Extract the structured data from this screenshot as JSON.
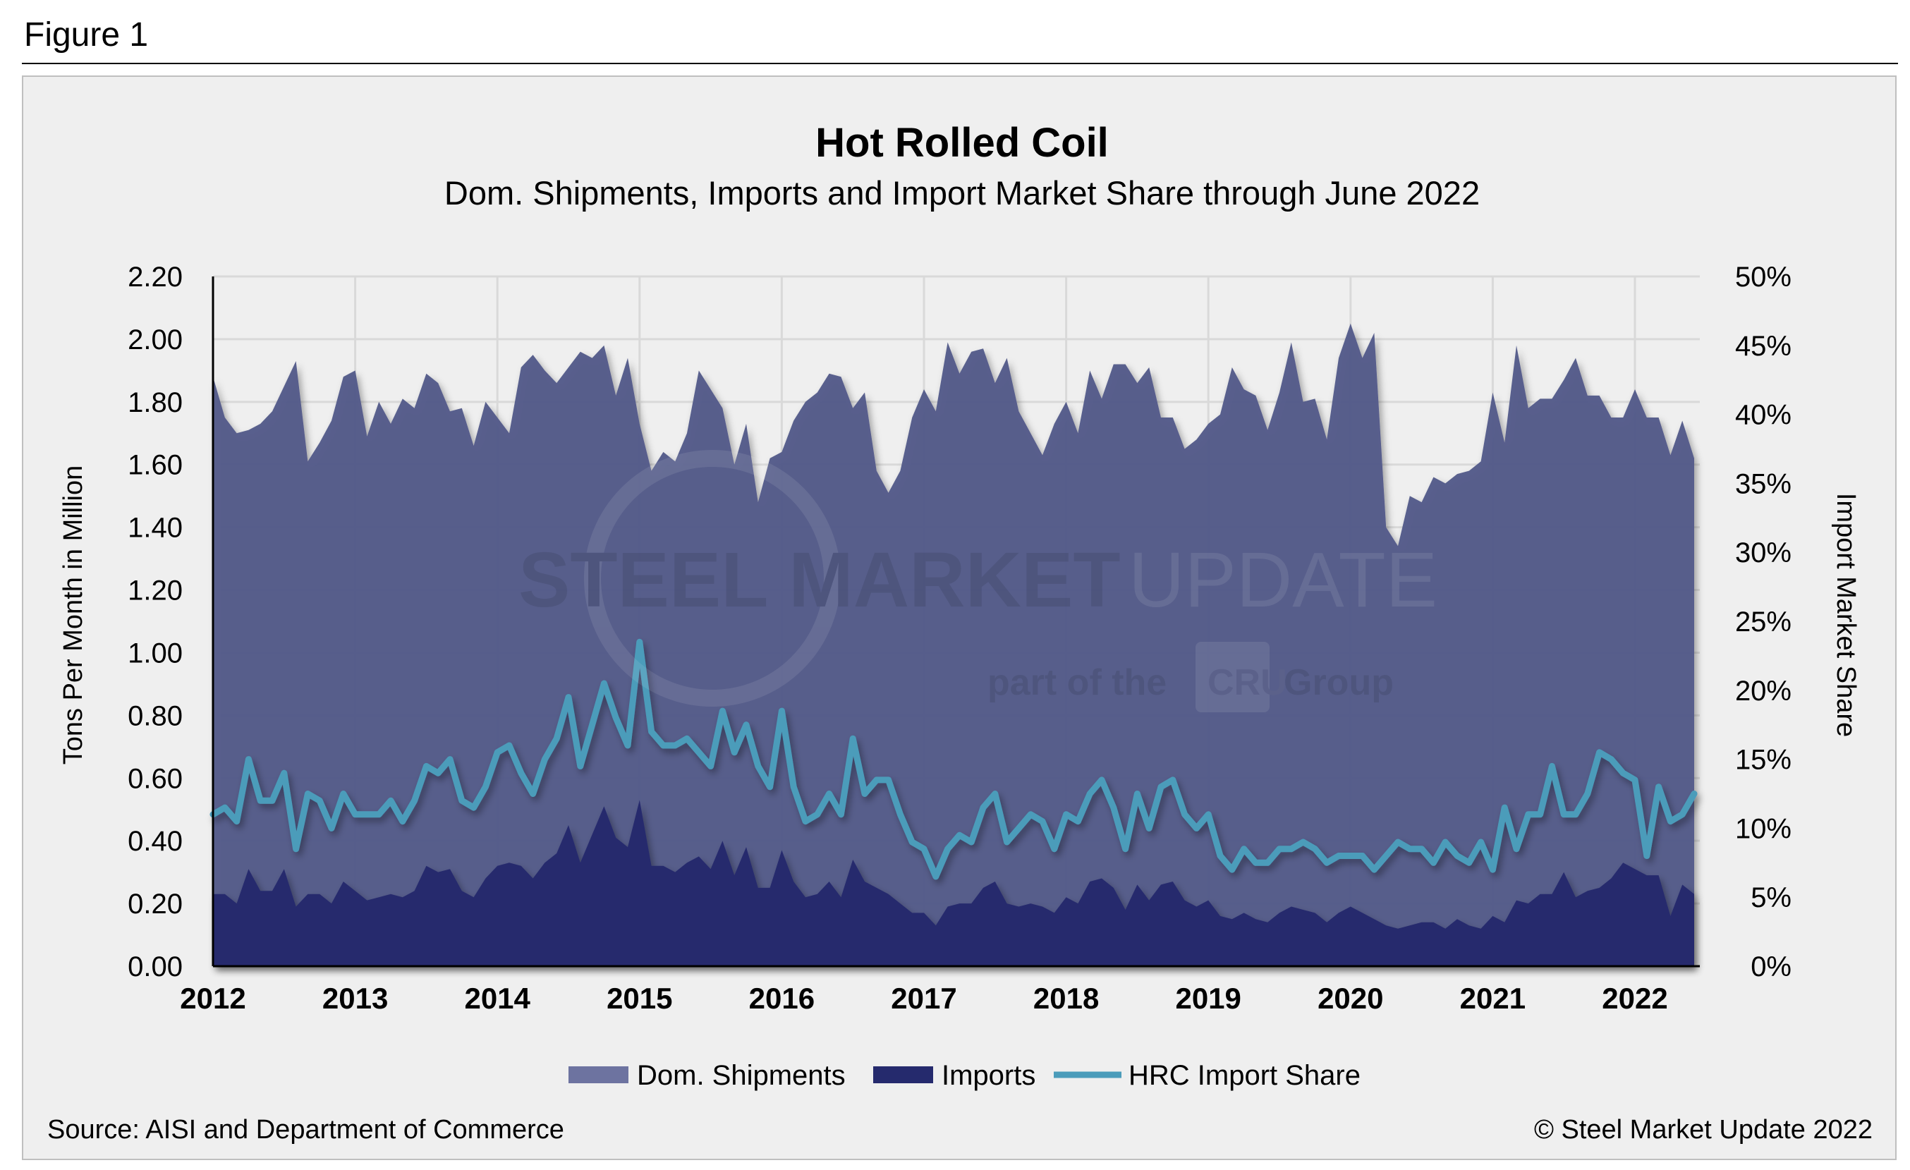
{
  "figure_label": "Figure 1",
  "source": "Source: AISI and Department of Commerce",
  "copyright": "© Steel Market Update 2022",
  "watermark": {
    "line1a": "STEEL MARKET",
    "line1b": "UPDATE",
    "line2a": "part of the",
    "line2b": "CRU",
    "line2c": "Group"
  },
  "colors": {
    "dom_shipments": "#545b8a",
    "imports": "#252a6d",
    "import_share": "#4b9cba",
    "background": "#efefef",
    "grid": "#d9d9d9"
  },
  "chart_data": {
    "type": "area",
    "title": "Hot Rolled Coil",
    "subtitle": "Dom. Shipments, Imports and Import Market Share through June 2022",
    "ylabel": "Tons Per Month in Million",
    "ylabel_right": "Import Market Share",
    "ylim": [
      0,
      2.2
    ],
    "ylim_right": [
      0,
      50
    ],
    "yticks": [
      "0.00",
      "0.20",
      "0.40",
      "0.60",
      "0.80",
      "1.00",
      "1.20",
      "1.40",
      "1.60",
      "1.80",
      "2.00",
      "2.20"
    ],
    "yticks_right": [
      "0%",
      "5%",
      "10%",
      "15%",
      "20%",
      "25%",
      "30%",
      "35%",
      "40%",
      "45%",
      "50%"
    ],
    "xticks": [
      "2012",
      "2013",
      "2014",
      "2015",
      "2016",
      "2017",
      "2018",
      "2019",
      "2020",
      "2021",
      "2022"
    ],
    "x_start": "2012-01",
    "x_end": "2022-06",
    "x_step": "month",
    "grid": true,
    "legend_position": "bottom",
    "series": [
      {
        "name": "Dom. Shipments",
        "kind": "area",
        "axis": "left",
        "values": [
          1.88,
          1.75,
          1.7,
          1.71,
          1.73,
          1.77,
          1.85,
          1.93,
          1.61,
          1.67,
          1.74,
          1.88,
          1.9,
          1.69,
          1.8,
          1.73,
          1.81,
          1.78,
          1.89,
          1.86,
          1.77,
          1.78,
          1.66,
          1.8,
          1.75,
          1.7,
          1.91,
          1.95,
          1.9,
          1.86,
          1.91,
          1.96,
          1.94,
          1.98,
          1.82,
          1.94,
          1.73,
          1.58,
          1.64,
          1.61,
          1.7,
          1.9,
          1.84,
          1.78,
          1.6,
          1.73,
          1.48,
          1.62,
          1.64,
          1.74,
          1.8,
          1.83,
          1.89,
          1.88,
          1.78,
          1.83,
          1.58,
          1.51,
          1.58,
          1.75,
          1.84,
          1.77,
          1.99,
          1.89,
          1.96,
          1.97,
          1.86,
          1.94,
          1.77,
          1.7,
          1.63,
          1.73,
          1.8,
          1.7,
          1.9,
          1.81,
          1.92,
          1.92,
          1.86,
          1.91,
          1.75,
          1.75,
          1.65,
          1.68,
          1.73,
          1.76,
          1.91,
          1.84,
          1.82,
          1.71,
          1.83,
          1.99,
          1.8,
          1.81,
          1.68,
          1.94,
          2.05,
          1.94,
          2.02,
          1.4,
          1.34,
          1.5,
          1.48,
          1.56,
          1.54,
          1.57,
          1.58,
          1.61,
          1.83,
          1.67,
          1.98,
          1.78,
          1.81,
          1.81,
          1.87,
          1.94,
          1.82,
          1.82,
          1.75,
          1.75,
          1.84,
          1.75,
          1.75,
          1.63,
          1.74,
          1.62
        ]
      },
      {
        "name": "Imports",
        "kind": "area",
        "axis": "left",
        "values": [
          0.23,
          0.23,
          0.2,
          0.31,
          0.24,
          0.24,
          0.31,
          0.19,
          0.23,
          0.23,
          0.2,
          0.27,
          0.24,
          0.21,
          0.22,
          0.23,
          0.22,
          0.24,
          0.32,
          0.3,
          0.31,
          0.24,
          0.22,
          0.28,
          0.32,
          0.33,
          0.32,
          0.28,
          0.33,
          0.36,
          0.45,
          0.33,
          0.42,
          0.51,
          0.41,
          0.38,
          0.53,
          0.32,
          0.32,
          0.3,
          0.33,
          0.35,
          0.31,
          0.4,
          0.29,
          0.38,
          0.25,
          0.25,
          0.37,
          0.27,
          0.22,
          0.23,
          0.27,
          0.22,
          0.34,
          0.27,
          0.25,
          0.23,
          0.2,
          0.17,
          0.17,
          0.13,
          0.19,
          0.2,
          0.2,
          0.25,
          0.27,
          0.2,
          0.19,
          0.2,
          0.19,
          0.17,
          0.22,
          0.2,
          0.27,
          0.28,
          0.25,
          0.18,
          0.26,
          0.21,
          0.26,
          0.27,
          0.21,
          0.19,
          0.21,
          0.16,
          0.15,
          0.17,
          0.15,
          0.14,
          0.17,
          0.19,
          0.18,
          0.17,
          0.14,
          0.17,
          0.19,
          0.17,
          0.15,
          0.13,
          0.12,
          0.13,
          0.14,
          0.14,
          0.12,
          0.15,
          0.13,
          0.12,
          0.16,
          0.14,
          0.21,
          0.2,
          0.23,
          0.23,
          0.3,
          0.22,
          0.24,
          0.25,
          0.28,
          0.33,
          0.31,
          0.29,
          0.29,
          0.16,
          0.26,
          0.23
        ]
      },
      {
        "name": "HRC Import Share",
        "kind": "line",
        "axis": "right",
        "unit": "%",
        "values": [
          11.0,
          11.5,
          10.5,
          15.0,
          12.0,
          12.0,
          14.0,
          8.5,
          12.5,
          12.0,
          10.0,
          12.5,
          11.0,
          11.0,
          11.0,
          12.0,
          10.5,
          12.0,
          14.5,
          14.0,
          15.0,
          12.0,
          11.5,
          13.0,
          15.5,
          16.0,
          14.0,
          12.5,
          15.0,
          16.5,
          19.5,
          14.5,
          17.5,
          20.5,
          18.0,
          16.0,
          23.5,
          17.0,
          16.0,
          16.0,
          16.5,
          15.5,
          14.5,
          18.5,
          15.5,
          17.5,
          14.5,
          13.0,
          18.5,
          13.0,
          10.5,
          11.0,
          12.5,
          11.0,
          16.5,
          12.5,
          13.5,
          13.5,
          11.0,
          9.0,
          8.5,
          6.5,
          8.5,
          9.5,
          9.0,
          11.5,
          12.5,
          9.0,
          10.0,
          11.0,
          10.5,
          8.5,
          11.0,
          10.5,
          12.5,
          13.5,
          11.5,
          8.5,
          12.5,
          10.0,
          13.0,
          13.5,
          11.0,
          10.0,
          11.0,
          8.0,
          7.0,
          8.5,
          7.5,
          7.5,
          8.5,
          8.5,
          9.0,
          8.5,
          7.5,
          8.0,
          8.0,
          8.0,
          7.0,
          8.0,
          9.0,
          8.5,
          8.5,
          7.5,
          9.0,
          8.0,
          7.5,
          9.0,
          7.0,
          11.5,
          8.5,
          11.0,
          11.0,
          14.5,
          11.0,
          11.0,
          12.5,
          15.5,
          15.0,
          14.0,
          13.5,
          8.0,
          13.0,
          10.5,
          11.0,
          12.5
        ]
      }
    ]
  }
}
